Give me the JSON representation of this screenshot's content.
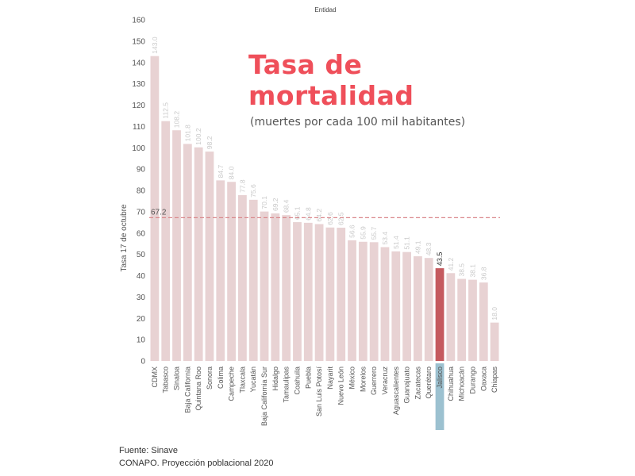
{
  "header": {
    "x_title": "Entidad"
  },
  "title": {
    "main": "Tasa de mortalidad",
    "subtitle": "(muertes por cada 100 mil habitantes)"
  },
  "source": {
    "line1": "Fuente: Sinave",
    "line2": "CONAPO. Proyección poblacional 2020"
  },
  "colors": {
    "bar": "#e8d2d3",
    "highlight": "#c55a5f",
    "highlight_label_bg": "#9cc1d0",
    "reference_line": "#d9878b"
  },
  "chart_data": {
    "type": "bar",
    "xlabel": "Entidad",
    "ylabel": "Tasa 17 de octubre",
    "ylim": [
      0,
      160
    ],
    "yticks": [
      0,
      10,
      20,
      30,
      40,
      50,
      60,
      70,
      80,
      90,
      100,
      110,
      120,
      130,
      140,
      150,
      160
    ],
    "categories": [
      "CDMX",
      "Tabasco",
      "Sinaloa",
      "Baja California",
      "Quintana Roo",
      "Sonora",
      "Colima",
      "Campeche",
      "Tlaxcala",
      "Yucatán",
      "Baja California Sur",
      "Hidalgo",
      "Tamaulipas",
      "Coahuila",
      "Puebla",
      "San Luis Potosí",
      "Nayarit",
      "Nuevo León",
      "México",
      "Morelos",
      "Guerrero",
      "Veracruz",
      "Aguascalientes",
      "Guanajuato",
      "Zacatecas",
      "Querétaro",
      "Jalisco",
      "Chihuahua",
      "Michoacán",
      "Durango",
      "Oaxaca",
      "Chiapas"
    ],
    "values": [
      143.0,
      112.5,
      108.2,
      101.8,
      100.2,
      98.2,
      84.7,
      84.0,
      77.8,
      75.6,
      70.1,
      69.2,
      68.4,
      65.1,
      64.8,
      64.2,
      62.6,
      62.5,
      56.6,
      55.9,
      55.7,
      53.4,
      51.4,
      51.1,
      49.1,
      48.3,
      43.5,
      41.2,
      38.5,
      38.1,
      36.8,
      18.0
    ],
    "value_labels": [
      "143.0",
      "112.5",
      "108.2",
      "101.8",
      "100.2",
      "98.2",
      "84.7",
      "84.0",
      "77.8",
      "75.6",
      "70.1",
      "69.2",
      "68.4",
      "65.1",
      "64.8",
      "64.2",
      "62.6",
      "62.5",
      "56.6",
      "55.9",
      "55.7",
      "53.4",
      "51.4",
      "51.1",
      "49.1",
      "48.3",
      "43.5",
      "41.2",
      "38.5",
      "38.1",
      "36.8",
      "18.0"
    ],
    "highlight": "Jalisco",
    "reference_line": {
      "value": 67.2,
      "label": "67.2"
    }
  }
}
